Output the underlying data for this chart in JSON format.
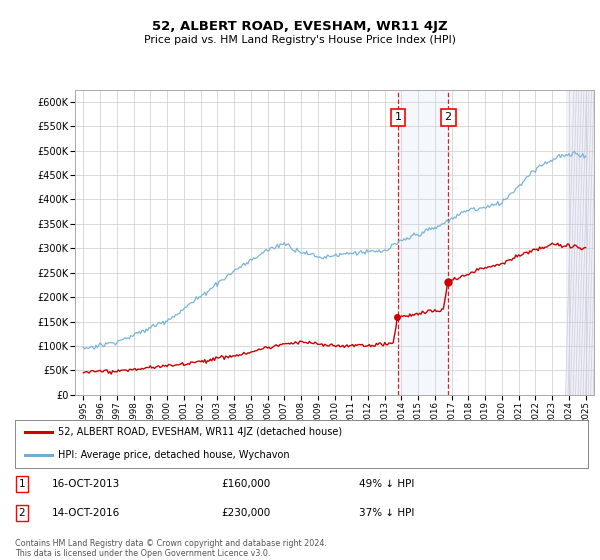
{
  "title": "52, ALBERT ROAD, EVESHAM, WR11 4JZ",
  "subtitle": "Price paid vs. HM Land Registry's House Price Index (HPI)",
  "ylim": [
    0,
    625000
  ],
  "yticks": [
    0,
    50000,
    100000,
    150000,
    200000,
    250000,
    300000,
    350000,
    400000,
    450000,
    500000,
    550000,
    600000
  ],
  "ytick_labels": [
    "£0",
    "£50K",
    "£100K",
    "£150K",
    "£200K",
    "£250K",
    "£300K",
    "£350K",
    "£400K",
    "£450K",
    "£500K",
    "£550K",
    "£600K"
  ],
  "hpi_color": "#6baed6",
  "price_color": "#cc0000",
  "sale1_date": 2013.79,
  "sale1_price": 160000,
  "sale2_date": 2016.79,
  "sale2_price": 230000,
  "legend_address": "52, ALBERT ROAD, EVESHAM, WR11 4JZ (detached house)",
  "legend_hpi": "HPI: Average price, detached house, Wychavon",
  "footnote": "Contains HM Land Registry data © Crown copyright and database right 2024.\nThis data is licensed under the Open Government Licence v3.0.",
  "bg_color": "#ffffff",
  "plot_bg": "#ffffff",
  "grid_color": "#cccccc",
  "shade_color": "#ddeeff",
  "hatch_color": "#e8e8f0"
}
